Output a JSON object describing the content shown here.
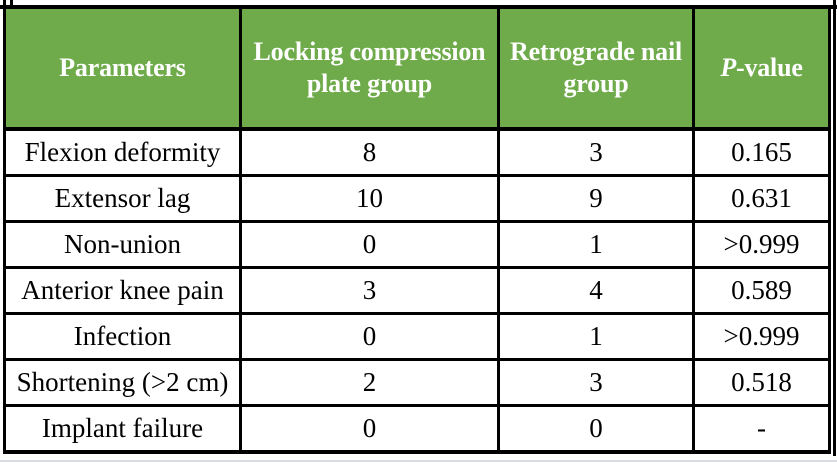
{
  "colors": {
    "header_bg": "#6FAB4A",
    "header_text": "#FFFFFF",
    "grid_border": "#000000",
    "body_text": "#000000",
    "faint_bottom_rule": "#D9DCE3"
  },
  "table": {
    "header": {
      "parameters": "Parameters",
      "group1": "Locking compression\nplate group",
      "group2": "Retrograde nail\ngroup",
      "pvalue_italic": "P",
      "pvalue_rest": "-value"
    },
    "rows": [
      {
        "parameter": "Flexion deformity",
        "lcp": "8",
        "rn": "3",
        "p": "0.165"
      },
      {
        "parameter": "Extensor lag",
        "lcp": "10",
        "rn": "9",
        "p": "0.631"
      },
      {
        "parameter": "Non-union",
        "lcp": "0",
        "rn": "1",
        "p": ">0.999"
      },
      {
        "parameter": "Anterior knee pain",
        "lcp": "3",
        "rn": "4",
        "p": "0.589"
      },
      {
        "parameter": "Infection",
        "lcp": "0",
        "rn": "1",
        "p": ">0.999"
      },
      {
        "parameter": "Shortening (>2 cm)",
        "lcp": "2",
        "rn": "3",
        "p": "0.518"
      },
      {
        "parameter": "Implant failure",
        "lcp": "0",
        "rn": "0",
        "p": "-"
      }
    ]
  },
  "chart_data": {
    "type": "table",
    "title": "",
    "columns": [
      "Parameters",
      "Locking compression plate group",
      "Retrograde nail group",
      "P-value"
    ],
    "rows": [
      [
        "Flexion deformity",
        8,
        3,
        "0.165"
      ],
      [
        "Extensor lag",
        10,
        9,
        "0.631"
      ],
      [
        "Non-union",
        0,
        1,
        ">0.999"
      ],
      [
        "Anterior knee pain",
        3,
        4,
        "0.589"
      ],
      [
        "Infection",
        0,
        1,
        ">0.999"
      ],
      [
        "Shortening (>2 cm)",
        2,
        3,
        "0.518"
      ],
      [
        "Implant failure",
        0,
        0,
        "-"
      ]
    ]
  }
}
